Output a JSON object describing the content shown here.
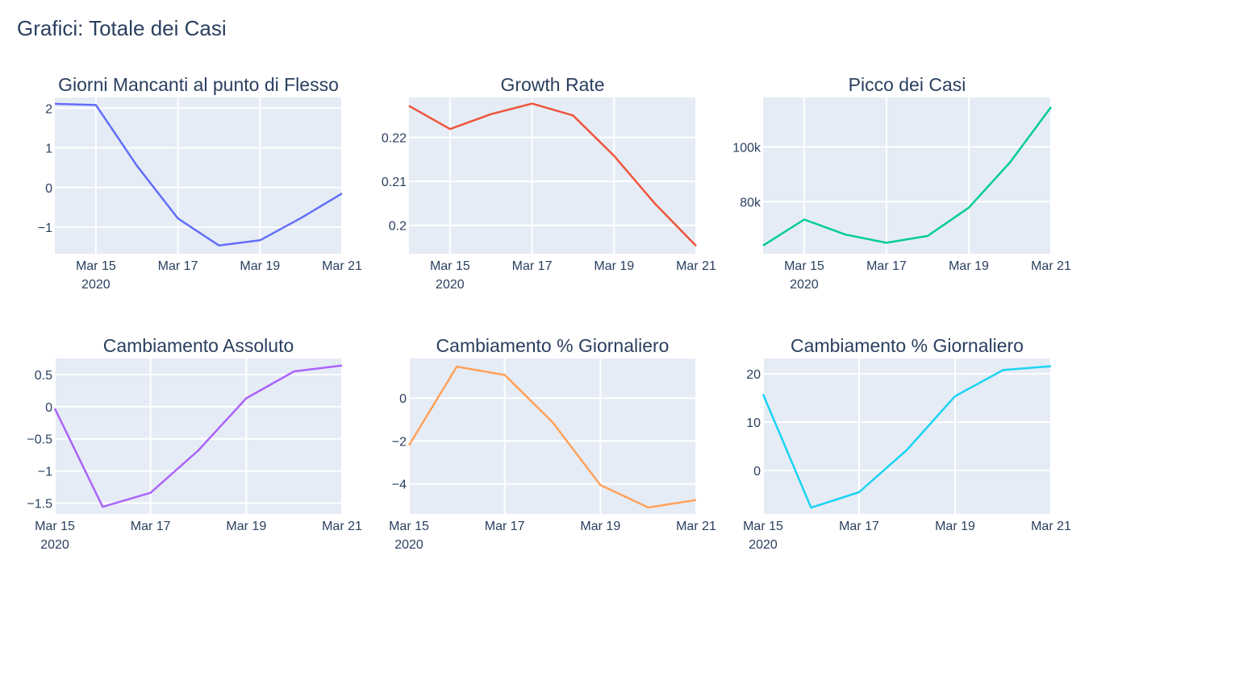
{
  "title": "Grafici: Totale dei Casi",
  "chart_data": [
    {
      "type": "line",
      "title": "Giorni Mancanti al punto di Flesso",
      "color": "#636efa",
      "x": [
        "2020-03-14",
        "2020-03-15",
        "2020-03-16",
        "2020-03-17",
        "2020-03-18",
        "2020-03-19",
        "2020-03-20",
        "2020-03-21"
      ],
      "y": [
        2.11,
        2.08,
        0.55,
        -0.78,
        -1.46,
        -1.33,
        -0.77,
        -0.15
      ],
      "xrange": [
        "2020-03-14",
        "2020-03-21"
      ],
      "yrange": [
        -1.67,
        2.27
      ],
      "yticks": [
        -1,
        0,
        1,
        2
      ],
      "ytick_labels": [
        "−1",
        "0",
        "1",
        "2"
      ],
      "xticks": [
        "2020-03-15",
        "2020-03-17",
        "2020-03-19",
        "2020-03-21"
      ],
      "xtick_labels": [
        "Mar 15",
        "Mar 17",
        "Mar 19",
        "Mar 21"
      ],
      "year_label": "2020",
      "grid": true
    },
    {
      "type": "line",
      "title": "Growth Rate",
      "color": "#EF553B",
      "x": [
        "2020-03-14",
        "2020-03-15",
        "2020-03-16",
        "2020-03-17",
        "2020-03-18",
        "2020-03-19",
        "2020-03-20",
        "2020-03-21"
      ],
      "y": [
        0.2272,
        0.2219,
        0.2253,
        0.2277,
        0.225,
        0.2158,
        0.2049,
        0.1953
      ],
      "xrange": [
        "2020-03-14",
        "2020-03-21"
      ],
      "yrange": [
        0.1935,
        0.2291
      ],
      "yticks": [
        0.2,
        0.21,
        0.22
      ],
      "ytick_labels": [
        "0.2",
        "0.21",
        "0.22"
      ],
      "xticks": [
        "2020-03-15",
        "2020-03-17",
        "2020-03-19",
        "2020-03-21"
      ],
      "xtick_labels": [
        "Mar 15",
        "Mar 17",
        "Mar 19",
        "Mar 21"
      ],
      "year_label": "2020",
      "grid": true
    },
    {
      "type": "line",
      "title": "Picco dei Casi",
      "color": "#00cc96",
      "x": [
        "2020-03-14",
        "2020-03-15",
        "2020-03-16",
        "2020-03-17",
        "2020-03-18",
        "2020-03-19",
        "2020-03-20",
        "2020-03-21"
      ],
      "y": [
        64000,
        73500,
        68000,
        65000,
        67500,
        77800,
        94300,
        114500
      ],
      "xrange": [
        "2020-03-14",
        "2020-03-21"
      ],
      "yrange": [
        61000,
        118000
      ],
      "yticks": [
        80000,
        100000
      ],
      "ytick_labels": [
        "80k",
        "100k"
      ],
      "xticks": [
        "2020-03-15",
        "2020-03-17",
        "2020-03-19",
        "2020-03-21"
      ],
      "xtick_labels": [
        "Mar 15",
        "Mar 17",
        "Mar 19",
        "Mar 21"
      ],
      "year_label": "2020",
      "grid": true
    },
    {
      "type": "line",
      "title": "Cambiamento Assoluto",
      "color": "#ab63fa",
      "x": [
        "2020-03-15",
        "2020-03-16",
        "2020-03-17",
        "2020-03-18",
        "2020-03-19",
        "2020-03-20",
        "2020-03-21"
      ],
      "y": [
        -0.03,
        -1.56,
        -1.34,
        -0.68,
        0.13,
        0.55,
        0.64
      ],
      "xrange": [
        "2020-03-15",
        "2020-03-21"
      ],
      "yrange": [
        -1.67,
        0.75
      ],
      "yticks": [
        -1.5,
        -1,
        -0.5,
        0,
        0.5
      ],
      "ytick_labels": [
        "−1.5",
        "−1",
        "−0.5",
        "0",
        "0.5"
      ],
      "xticks": [
        "2020-03-15",
        "2020-03-17",
        "2020-03-19",
        "2020-03-21"
      ],
      "xtick_labels": [
        "Mar 15",
        "Mar 17",
        "Mar 19",
        "Mar 21"
      ],
      "year_label": "2020",
      "grid": true
    },
    {
      "type": "line",
      "title": "Cambiamento % Giornaliero",
      "color": "#FFA15A",
      "x": [
        "2020-03-15",
        "2020-03-16",
        "2020-03-17",
        "2020-03-18",
        "2020-03-19",
        "2020-03-20",
        "2020-03-21"
      ],
      "y": [
        -2.2,
        1.47,
        1.08,
        -1.12,
        -4.05,
        -5.1,
        -4.75
      ],
      "xrange": [
        "2020-03-15",
        "2020-03-21"
      ],
      "yrange": [
        -5.4,
        1.85
      ],
      "yticks": [
        -4,
        -2,
        0
      ],
      "ytick_labels": [
        "−4",
        "−2",
        "0"
      ],
      "xticks": [
        "2020-03-15",
        "2020-03-17",
        "2020-03-19",
        "2020-03-21"
      ],
      "xtick_labels": [
        "Mar 15",
        "Mar 17",
        "Mar 19",
        "Mar 21"
      ],
      "year_label": "2020",
      "grid": true
    },
    {
      "type": "line",
      "title": "Cambiamento % Giornaliero",
      "color": "#19d3f3",
      "x": [
        "2020-03-15",
        "2020-03-16",
        "2020-03-17",
        "2020-03-18",
        "2020-03-19",
        "2020-03-20",
        "2020-03-21"
      ],
      "y": [
        15.8,
        -7.7,
        -4.5,
        4.3,
        15.4,
        20.8,
        21.6
      ],
      "xrange": [
        "2020-03-15",
        "2020-03-21"
      ],
      "yrange": [
        -9.0,
        23.2
      ],
      "yticks": [
        0,
        10,
        20
      ],
      "ytick_labels": [
        "0",
        "10",
        "20"
      ],
      "xticks": [
        "2020-03-15",
        "2020-03-17",
        "2020-03-19",
        "2020-03-21"
      ],
      "xtick_labels": [
        "Mar 15",
        "Mar 17",
        "Mar 19",
        "Mar 21"
      ],
      "year_label": "2020",
      "grid": true
    }
  ]
}
